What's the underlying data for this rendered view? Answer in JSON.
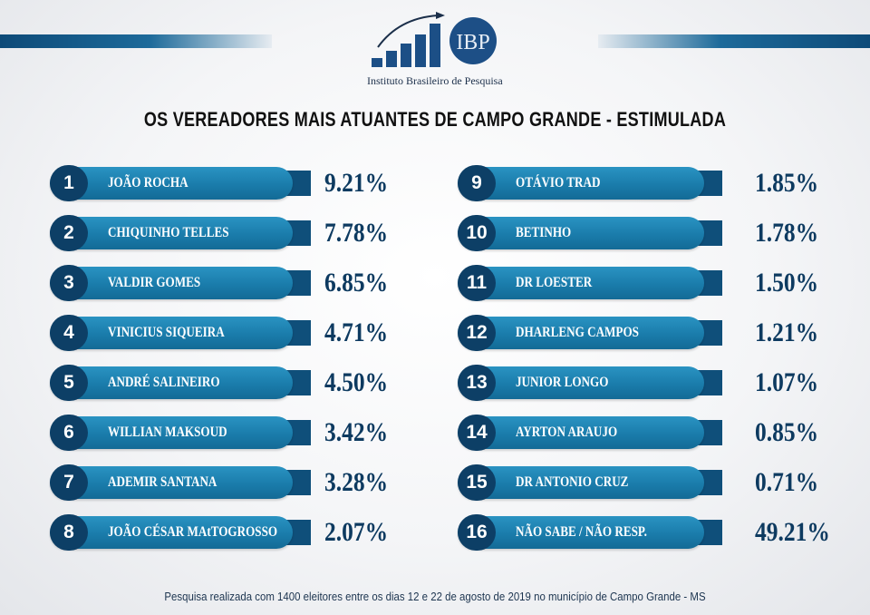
{
  "logo": {
    "abbr": "IBP",
    "name": "Instituto Brasileiro de Pesquisa"
  },
  "title": "OS VEREADORES MAIS ATUANTES  DE CAMPO GRANDE - ESTIMULADA",
  "colors": {
    "pill": "#1a7cab",
    "badge": "#0d3f66",
    "value_text": "#0d3a60"
  },
  "chart_data": {
    "type": "table",
    "title": "OS VEREADORES MAIS ATUANTES  DE CAMPO GRANDE - ESTIMULADA",
    "columns": [
      "rank",
      "name",
      "percent"
    ],
    "rows": [
      {
        "rank": "1",
        "name": "JOÃO ROCHA",
        "percent": "9.21%"
      },
      {
        "rank": "2",
        "name": "CHIQUINHO TELLES",
        "percent": "7.78%"
      },
      {
        "rank": "3",
        "name": "VALDIR GOMES",
        "percent": "6.85%"
      },
      {
        "rank": "4",
        "name": "VINICIUS SIQUEIRA",
        "percent": "4.71%"
      },
      {
        "rank": "5",
        "name": "ANDRÉ SALINEIRO",
        "percent": "4.50%"
      },
      {
        "rank": "6",
        "name": "WILLIAN MAKSOUD",
        "percent": "3.42%"
      },
      {
        "rank": "7",
        "name": "ADEMIR SANTANA",
        "percent": "3.28%"
      },
      {
        "rank": "8",
        "name": "JOÃO CÉSAR MAtTOGROSSO",
        "percent": "2.07%"
      },
      {
        "rank": "9",
        "name": "OTÁVIO TRAD",
        "percent": "1.85%"
      },
      {
        "rank": "10",
        "name": "BETINHO",
        "percent": "1.78%"
      },
      {
        "rank": "11",
        "name": "DR LOESTER",
        "percent": "1.50%"
      },
      {
        "rank": "12",
        "name": "DHARLENG CAMPOS",
        "percent": "1.21%"
      },
      {
        "rank": "13",
        "name": "JUNIOR LONGO",
        "percent": "1.07%"
      },
      {
        "rank": "14",
        "name": "AYRTON ARAUJO",
        "percent": "0.85%"
      },
      {
        "rank": "15",
        "name": "DR ANTONIO CRUZ",
        "percent": "0.71%"
      },
      {
        "rank": "16",
        "name": "NÃO SABE / NÃO RESP.",
        "percent": "49.21%"
      }
    ]
  },
  "footer": "Pesquisa realizada com 1400 eleitores entre os dias 12 e 22 de agosto de 2019 no município de Campo Grande - MS"
}
